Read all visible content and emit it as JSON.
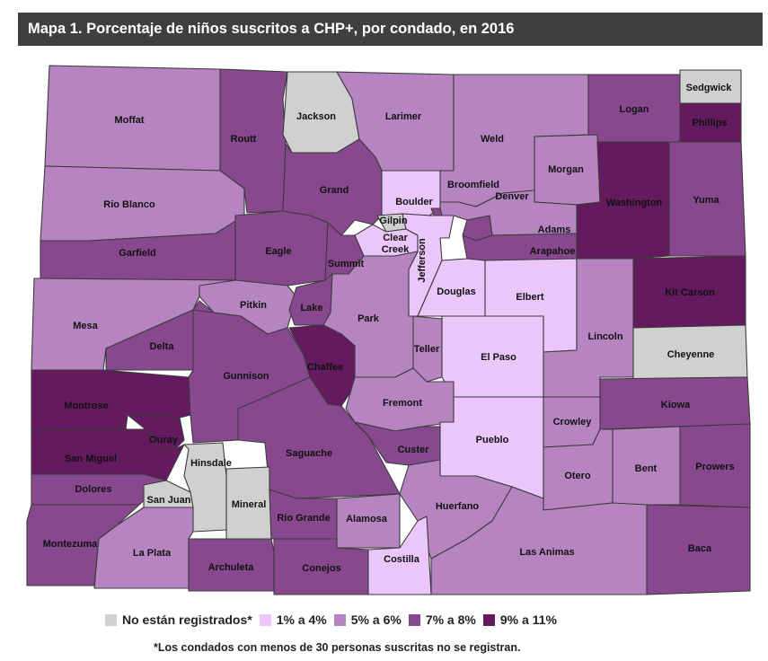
{
  "title": "Mapa 1. Porcentaje de niños suscritos a CHP+, por condado, en 2016",
  "colors": {
    "na": "#d0d0d0",
    "c1": "#ebc6fa",
    "c2": "#b784c2",
    "c3": "#88488e",
    "c4": "#641a5f",
    "border": "#3b3b3b"
  },
  "legend": [
    {
      "key": "na",
      "label": "No están registrados*"
    },
    {
      "key": "c1",
      "label": "1% a 4%"
    },
    {
      "key": "c2",
      "label": "5% a 6%"
    },
    {
      "key": "c3",
      "label": "7% a 8%"
    },
    {
      "key": "c4",
      "label": "9% a 11%"
    }
  ],
  "footnote": "*Los condados con menos de 30 personas suscritas no se registran.",
  "counties": {
    "moffat": {
      "name": "Moffat",
      "class": "c2"
    },
    "routt": {
      "name": "Routt",
      "class": "c3"
    },
    "jackson": {
      "name": "Jackson",
      "class": "na"
    },
    "larimer": {
      "name": "Larimer",
      "class": "c2"
    },
    "weld": {
      "name": "Weld",
      "class": "c2"
    },
    "logan": {
      "name": "Logan",
      "class": "c3"
    },
    "sedgwick": {
      "name": "Sedgwick",
      "class": "na"
    },
    "phillips": {
      "name": "Phillips",
      "class": "c4"
    },
    "morgan": {
      "name": "Morgan",
      "class": "c2"
    },
    "washington": {
      "name": "Washington",
      "class": "c4"
    },
    "yuma": {
      "name": "Yuma",
      "class": "c3"
    },
    "rio_blanco": {
      "name": "Rio Blanco",
      "class": "c2"
    },
    "grand": {
      "name": "Grand",
      "class": "c3"
    },
    "boulder": {
      "name": "Boulder",
      "class": "c1"
    },
    "broomfield": {
      "name": "Broomfield",
      "class": "c3"
    },
    "denver": {
      "name": "Denver",
      "class": "c3"
    },
    "adams": {
      "name": "Adams",
      "class": "c2"
    },
    "arapahoe": {
      "name": "Arapahoe",
      "class": "c3"
    },
    "garfield": {
      "name": "Garfield",
      "class": "c3"
    },
    "eagle": {
      "name": "Eagle",
      "class": "c3"
    },
    "summit": {
      "name": "Summit",
      "class": "c3"
    },
    "gilpin": {
      "name": "Gilpin",
      "class": "na"
    },
    "clear_creek": {
      "name": "Clear Creek",
      "class": "c1"
    },
    "jefferson": {
      "name": "Jefferson",
      "class": "c1"
    },
    "douglas": {
      "name": "Douglas",
      "class": "c1"
    },
    "elbert": {
      "name": "Elbert",
      "class": "c1"
    },
    "kit_carson": {
      "name": "Kit Carson",
      "class": "c4"
    },
    "mesa": {
      "name": "Mesa",
      "class": "c2"
    },
    "pitkin": {
      "name": "Pitkin",
      "class": "c2"
    },
    "lake": {
      "name": "Lake",
      "class": "c3"
    },
    "park": {
      "name": "Park",
      "class": "c2"
    },
    "teller": {
      "name": "Teller",
      "class": "c2"
    },
    "el_paso": {
      "name": "El Paso",
      "class": "c1"
    },
    "lincoln": {
      "name": "Lincoln",
      "class": "c2"
    },
    "cheyenne": {
      "name": "Cheyenne",
      "class": "na"
    },
    "delta": {
      "name": "Delta",
      "class": "c3"
    },
    "gunnison": {
      "name": "Gunnison",
      "class": "c3"
    },
    "chaffee": {
      "name": "Chaffee",
      "class": "c4"
    },
    "fremont": {
      "name": "Fremont",
      "class": "c2"
    },
    "kiowa": {
      "name": "Kiowa",
      "class": "c3"
    },
    "montrose": {
      "name": "Montrose",
      "class": "c4"
    },
    "ouray": {
      "name": "Ouray",
      "class": "c4"
    },
    "san_miguel": {
      "name": "San Miguel",
      "class": "c4"
    },
    "hinsdale": {
      "name": "Hinsdale",
      "class": "na"
    },
    "saguache": {
      "name": "Saguache",
      "class": "c3"
    },
    "custer": {
      "name": "Custer",
      "class": "c3"
    },
    "pueblo": {
      "name": "Pueblo",
      "class": "c1"
    },
    "crowley": {
      "name": "Crowley",
      "class": "c2"
    },
    "otero": {
      "name": "Otero",
      "class": "c2"
    },
    "bent": {
      "name": "Bent",
      "class": "c2"
    },
    "prowers": {
      "name": "Prowers",
      "class": "c3"
    },
    "dolores": {
      "name": "Dolores",
      "class": "c3"
    },
    "san_juan": {
      "name": "San Juan",
      "class": "na"
    },
    "mineral": {
      "name": "Mineral",
      "class": "na"
    },
    "rio_grande": {
      "name": "Rio Grande",
      "class": "c3"
    },
    "alamosa": {
      "name": "Alamosa",
      "class": "c2"
    },
    "huerfano": {
      "name": "Huerfano",
      "class": "c2"
    },
    "las_animas": {
      "name": "Las Animas",
      "class": "c2"
    },
    "baca": {
      "name": "Baca",
      "class": "c3"
    },
    "montezuma": {
      "name": "Montezuma",
      "class": "c3"
    },
    "la_plata": {
      "name": "La Plata",
      "class": "c2"
    },
    "archuleta": {
      "name": "Archuleta",
      "class": "c3"
    },
    "conejos": {
      "name": "Conejos",
      "class": "c3"
    },
    "costilla": {
      "name": "Costilla",
      "class": "c1"
    }
  }
}
